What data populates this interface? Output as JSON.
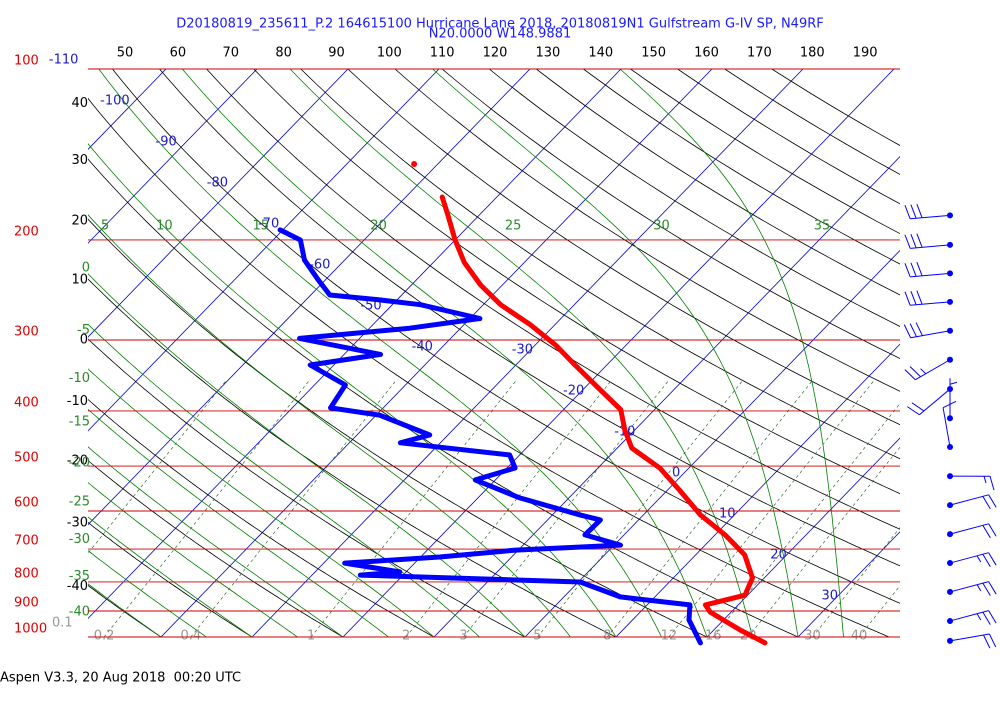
{
  "chart_data": {
    "type": "skewt",
    "title": "D20180819_235611_P.2 164615100 Hurricane Lane 2018, 20180819N1 Gulfstream G-IV SP, N49RF",
    "subtitle": "N20.0000 W148.9881",
    "footer": "Aspen V3.3, 20 Aug 2018  00:20 UTC",
    "log_y": true,
    "ylim": [
      1000,
      100
    ],
    "yticks": [
      100,
      200,
      300,
      400,
      500,
      600,
      700,
      800,
      900,
      1000
    ],
    "xlim": [
      43,
      196.6
    ],
    "xticks": [
      50,
      60,
      70,
      80,
      90,
      100,
      110,
      120,
      130,
      140,
      150,
      160,
      170,
      180,
      190
    ],
    "left_ticks": [
      40,
      30,
      20,
      10,
      0,
      -10,
      -20,
      -30,
      -40
    ],
    "isotherm_labels": [
      -110,
      -100,
      -90,
      -80,
      -70,
      -60,
      -50,
      -40,
      -30,
      -20,
      -10,
      0,
      10,
      20,
      30
    ],
    "moist_left_labels": [
      0,
      -5,
      -10,
      -15,
      -20,
      -25,
      -30,
      -35,
      -40
    ],
    "moist_top_labels": [
      5,
      10,
      15,
      20,
      25,
      30,
      35
    ],
    "mixing_ratio_labels": [
      0.1,
      0.2,
      0.4,
      1,
      2,
      3,
      5,
      8,
      12,
      16,
      20,
      30,
      40
    ],
    "series": [
      {
        "color": "#ff0000",
        "pressure": [
          147,
          null,
          168,
          181,
          200,
          219,
          240,
          260,
          282,
          306,
          332,
          367,
          398,
          432,
          465,
          504,
          551,
          610,
          661,
          717,
          787,
          844,
          878,
          904,
          972,
          1024
        ],
        "values": [
          -62.6,
          null,
          -56.0,
          -53.4,
          -50.0,
          -46.6,
          -42.4,
          -38.1,
          -32.7,
          -27.8,
          -23.5,
          -18.1,
          -13.7,
          -11.1,
          -8.4,
          -3.2,
          1.3,
          6.3,
          11.1,
          15.4,
          18.7,
          19.7,
          16.4,
          17.7,
          22.9,
          27.0
        ]
      },
      {
        "color": "#0000ff",
        "pressure": [
          192,
          200,
          217,
          235,
          250,
          255,
          260,
          275,
          286,
          298,
          318,
          332,
          360,
          395,
          407,
          441,
          455,
          478,
          504,
          529,
          569,
          610,
          622,
          661,
          689,
          703,
          723,
          741,
          768,
          778,
          800,
          850,
          878,
          933,
          1024
        ],
        "values": [
          -70.3,
          -67,
          -64.4,
          -60.8,
          -57.9,
          -51.9,
          -46.9,
          -38.9,
          -45.6,
          -56.6,
          -46,
          -52.6,
          -46.6,
          -45.8,
          -39.6,
          -32,
          -34.4,
          -21.1,
          -19.1,
          -22.2,
          -15.4,
          -6.9,
          -4.2,
          -4.3,
          0.7,
          -10.3,
          -17.9,
          -27.7,
          -20.7,
          -24.7,
          0.2,
          6.2,
          14.7,
          16.2,
          19.9
        ]
      }
    ],
    "wind": {
      "color": "#0000ff",
      "pressure": [
        181,
        204,
        229,
        257,
        289,
        325,
        366,
        412,
        463,
        521,
        586,
        659,
        741,
        833,
        937,
        1016
      ],
      "speed": [
        30,
        30,
        30,
        30,
        30,
        25,
        20,
        5,
        10,
        15,
        20,
        20,
        25,
        25,
        25,
        20
      ],
      "direction": [
        265,
        265,
        265,
        265,
        260,
        240,
        230,
        0,
        350,
        90,
        75,
        75,
        75,
        75,
        75,
        80
      ]
    }
  }
}
